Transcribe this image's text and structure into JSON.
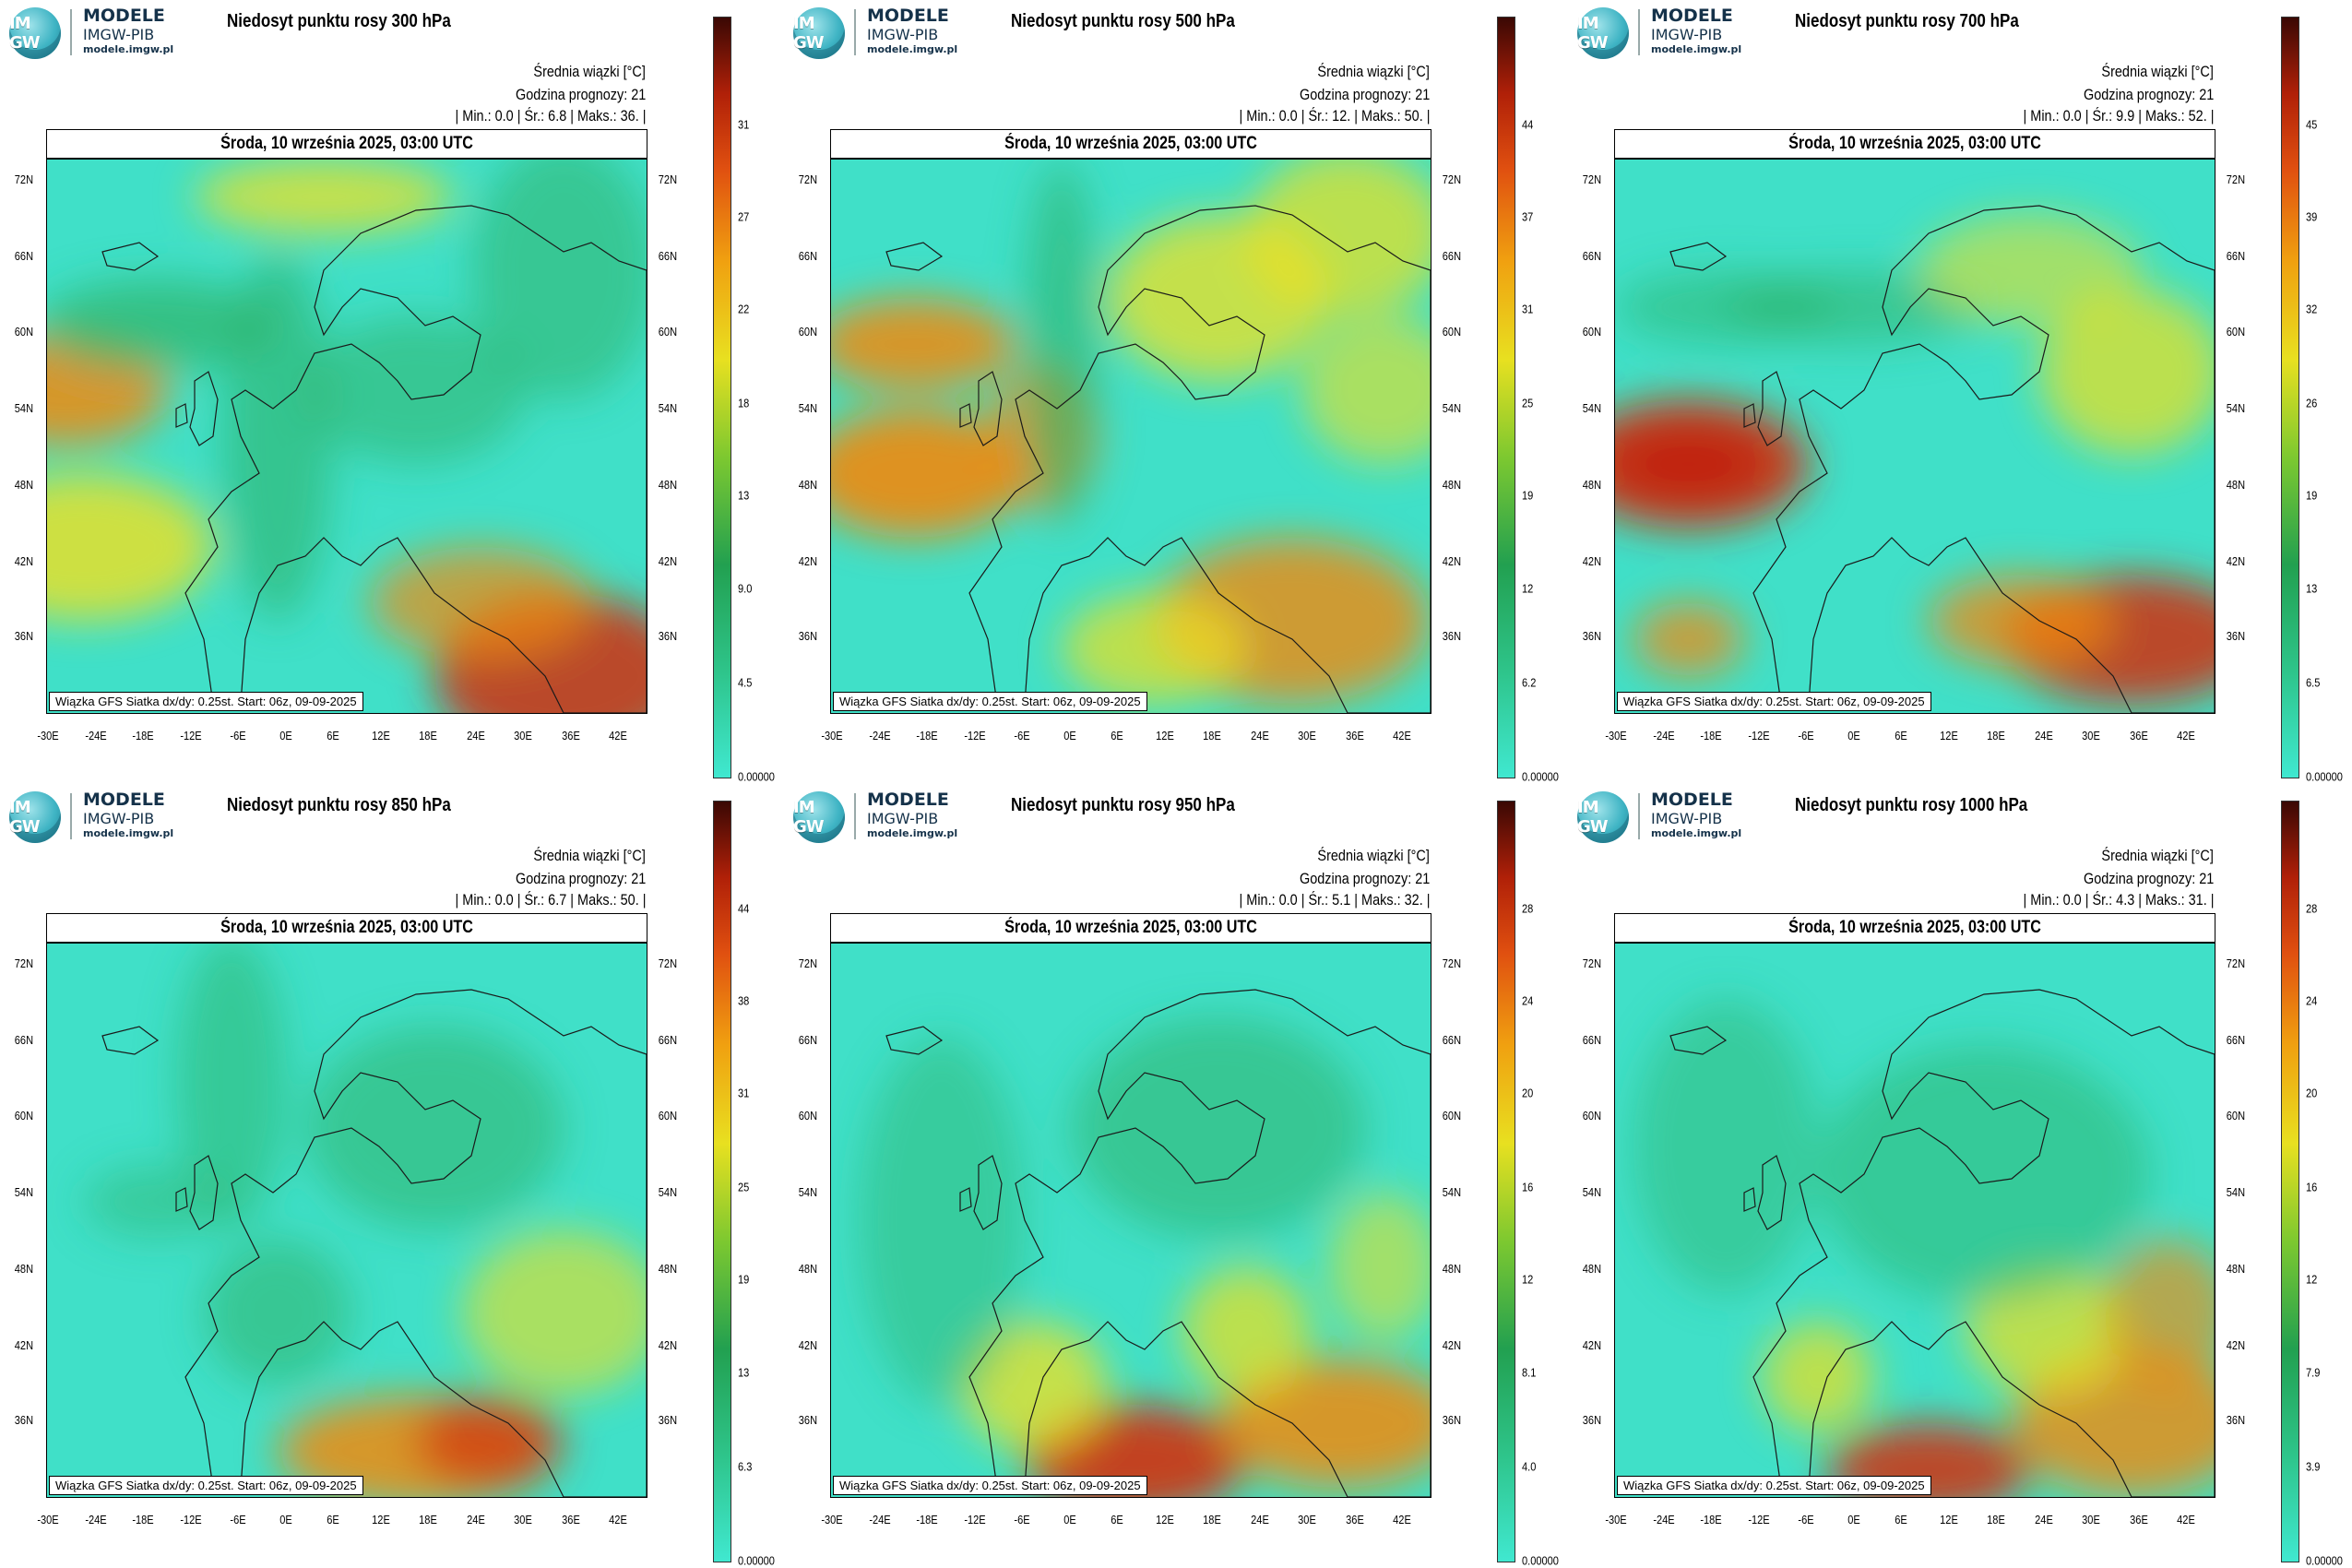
{
  "logo": {
    "circle_text": "IM GW",
    "line1": "MODELE",
    "line2": "IMGW-PIB",
    "line3": "modele.imgw.pl"
  },
  "common": {
    "units_label": "Średnia wiązki [°C]",
    "forecast_hour": "Godzina prognozy: 21",
    "date": "Środa, 10 września 2025, 03:00 UTC",
    "footer": "Wiązka GFS Siatka dx/dy: 0.25st. Start: 06z, 09-09-2025",
    "lat_labels": [
      "72N",
      "66N",
      "60N",
      "54N",
      "48N",
      "42N",
      "36N"
    ],
    "lon_labels": [
      "-30E",
      "-24E",
      "-18E",
      "-12E",
      "-6E",
      "0E",
      "6E",
      "12E",
      "18E",
      "24E",
      "30E",
      "36E",
      "42E"
    ]
  },
  "panels": [
    {
      "title": "Niedosyt punktu rosy 300 hPa",
      "stats": "| Min.:    0.0 | Śr.:      6.8 | Maks.:     36. |",
      "colorbar": [
        "31",
        "27",
        "22",
        "18",
        "13",
        "9.0",
        "4.5",
        "0.00000"
      ]
    },
    {
      "title": "Niedosyt punktu rosy 500 hPa",
      "stats": "| Min.:    0.0 | Śr.:      12. | Maks.:     50. |",
      "colorbar": [
        "44",
        "37",
        "31",
        "25",
        "19",
        "12",
        "6.2",
        "0.00000"
      ]
    },
    {
      "title": "Niedosyt punktu rosy 700 hPa",
      "stats": "| Min.:    0.0 | Śr.:      9.9 | Maks.:     52. |",
      "colorbar": [
        "45",
        "39",
        "32",
        "26",
        "19",
        "13",
        "6.5",
        "0.00000"
      ]
    },
    {
      "title": "Niedosyt punktu rosy 850 hPa",
      "stats": "| Min.:    0.0 | Śr.:      6.7 | Maks.:     50. |",
      "colorbar": [
        "44",
        "38",
        "31",
        "25",
        "19",
        "13",
        "6.3",
        "0.00000"
      ]
    },
    {
      "title": "Niedosyt punktu rosy 950 hPa",
      "stats": "| Min.:    0.0 | Śr.:      5.1 | Maks.:     32. |",
      "colorbar": [
        "28",
        "24",
        "20",
        "16",
        "12",
        "8.1",
        "4.0",
        "0.00000"
      ]
    },
    {
      "title": "Niedosyt punktu rosy 1000 hPa",
      "stats": "| Min.:    0.0 | Śr.:      4.3 | Maks.:     31. |",
      "colorbar": [
        "28",
        "24",
        "20",
        "16",
        "12",
        "7.9",
        "3.9",
        "0.00000"
      ]
    }
  ],
  "colors": {
    "low": "#40e0c8",
    "mid_green": "#2eb36a",
    "yellow": "#f0e020",
    "orange": "#f08a10",
    "red": "#d03010",
    "dark": "#4a1008"
  }
}
